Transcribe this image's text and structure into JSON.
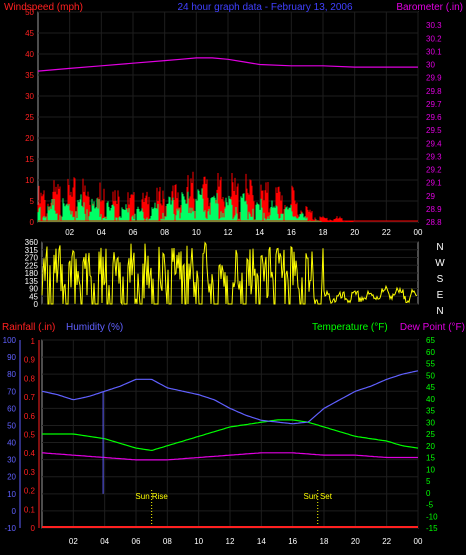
{
  "page_title": "24 hour graph data - February 13, 2006",
  "chart_data": [
    {
      "id": "wind-baro",
      "type": "line",
      "title": "24 hour graph data - February 13, 2006",
      "xlim": [
        0,
        24
      ],
      "x_tick_labels": [
        "02",
        "04",
        "06",
        "08",
        "10",
        "12",
        "14",
        "16",
        "18",
        "20",
        "22",
        "00"
      ],
      "left_axis": {
        "label": "Windspeed (mph)",
        "color": "#ff2020",
        "range": [
          0,
          50
        ],
        "tick_labels": [
          "0",
          "5",
          "10",
          "15",
          "20",
          "25",
          "30",
          "35",
          "40",
          "45",
          "50"
        ]
      },
      "right_axis": {
        "label": "Barometer (.in)",
        "color": "#e000e0",
        "range": [
          28.8,
          30.4
        ],
        "tick_labels": [
          "28.8",
          "28.9",
          "29",
          "29.1",
          "29.2",
          "29.3",
          "29.4",
          "29.5",
          "29.6",
          "29.7",
          "29.8",
          "29.9",
          "30",
          "30.1",
          "30.2",
          "30.3"
        ]
      },
      "series": [
        {
          "name": "Barometer (.in)",
          "color": "#e000e0",
          "axis": "right",
          "x": [
            0,
            2,
            4,
            6,
            8,
            9,
            10,
            11,
            12,
            13,
            14,
            16,
            18,
            20,
            22,
            24
          ],
          "y": [
            29.95,
            29.97,
            29.99,
            30.01,
            30.03,
            30.04,
            30.05,
            30.05,
            30.04,
            30.02,
            30.0,
            29.99,
            29.99,
            29.98,
            29.98,
            29.98
          ]
        },
        {
          "name": "Wind gust",
          "color": "#ff0000",
          "axis": "left",
          "x": [
            0,
            1,
            2,
            3,
            4,
            5,
            6,
            7,
            8,
            9,
            10,
            11,
            12,
            13,
            14,
            15,
            16,
            17,
            18,
            19,
            20,
            21,
            22,
            24
          ],
          "y": [
            6,
            7,
            7,
            8,
            7,
            6,
            5,
            5,
            6,
            7,
            9,
            8,
            8,
            8,
            7,
            7,
            6,
            3,
            1,
            1,
            0,
            0,
            0,
            0
          ]
        },
        {
          "name": "Wind average",
          "color": "#00ff66",
          "axis": "left",
          "x": [
            0,
            1,
            2,
            3,
            4,
            5,
            6,
            7,
            8,
            9,
            10,
            11,
            12,
            13,
            14,
            15,
            16,
            17,
            18,
            19,
            20,
            21,
            22,
            24
          ],
          "y": [
            3,
            4,
            4,
            5,
            4,
            3,
            3,
            3,
            4,
            5,
            6,
            5,
            5,
            5,
            4,
            4,
            3,
            1,
            0,
            0,
            0,
            0,
            0,
            0
          ]
        }
      ]
    },
    {
      "id": "direction",
      "type": "line",
      "xlim": [
        0,
        24
      ],
      "left_axis": {
        "range": [
          0,
          360
        ],
        "tick_labels": [
          "0",
          "45",
          "90",
          "135",
          "180",
          "225",
          "270",
          "315",
          "360"
        ]
      },
      "right_labels": [
        "N",
        "W",
        "S",
        "E",
        "N"
      ],
      "series": [
        {
          "name": "Wind direction",
          "color": "#ffff00",
          "x": [
            0,
            1,
            2,
            3,
            4,
            5,
            6,
            7,
            8,
            9,
            10,
            11,
            12,
            13,
            14,
            15,
            16,
            17,
            18,
            19,
            20,
            21,
            22,
            23,
            24
          ],
          "y": [
            270,
            300,
            250,
            280,
            260,
            290,
            240,
            270,
            280,
            300,
            260,
            280,
            270,
            290,
            280,
            300,
            270,
            280,
            60,
            50,
            60,
            60,
            90,
            70,
            60
          ]
        }
      ]
    },
    {
      "id": "temp-hum-rain",
      "type": "line",
      "xlim": [
        0,
        24
      ],
      "left_axis": {
        "label": "Humidity (%)",
        "color": "#6060ff",
        "range": [
          -10,
          100
        ],
        "tick_labels": [
          "-10",
          "0",
          "10",
          "20",
          "30",
          "40",
          "50",
          "60",
          "70",
          "80",
          "90",
          "100"
        ]
      },
      "rain_axis": {
        "label": "Rainfall (.in)",
        "color": "#ff2020",
        "range": [
          0,
          1
        ],
        "tick_labels": [
          "0",
          "0.1",
          "0.2",
          "0.3",
          "0.4",
          "0.5",
          "0.6",
          "0.7",
          "0.8",
          "0.9",
          "1"
        ]
      },
      "right_axis": {
        "label": "Temperature (°F)",
        "color": "#00ff00",
        "range": [
          -15,
          65
        ],
        "tick_labels": [
          "-15",
          "-10",
          "-5",
          "0",
          "5",
          "10",
          "15",
          "20",
          "25",
          "30",
          "35",
          "40",
          "45",
          "50",
          "55",
          "60",
          "65"
        ]
      },
      "dew_label": "Dew Point (°F)",
      "dew_color": "#e000e0",
      "annotations": [
        {
          "text": "Sun Rise",
          "x": 7.0
        },
        {
          "text": "Sun Set",
          "x": 17.6
        }
      ],
      "series": [
        {
          "name": "Humidity (%)",
          "color": "#6060ff",
          "axis": "left",
          "x": [
            0,
            1,
            2,
            3,
            4,
            5,
            6,
            7,
            8,
            9,
            10,
            11,
            12,
            13,
            14,
            15,
            16,
            17,
            18,
            19,
            20,
            21,
            22,
            23,
            24
          ],
          "y": [
            70,
            68,
            65,
            67,
            70,
            73,
            77,
            77,
            72,
            70,
            68,
            65,
            60,
            56,
            53,
            52,
            51,
            52,
            60,
            65,
            70,
            73,
            77,
            80,
            82
          ]
        },
        {
          "name": "Temperature (°F)",
          "color": "#00ff00",
          "axis": "right",
          "x": [
            0,
            1,
            2,
            3,
            4,
            5,
            6,
            7,
            8,
            9,
            10,
            11,
            12,
            13,
            14,
            15,
            16,
            17,
            18,
            19,
            20,
            21,
            22,
            23,
            24
          ],
          "y": [
            25,
            25,
            25,
            24,
            23,
            21,
            19,
            18,
            20,
            22,
            24,
            26,
            28,
            29,
            30,
            31,
            31,
            30,
            28,
            26,
            24,
            23,
            22,
            20,
            19
          ]
        },
        {
          "name": "Dew Point (°F)",
          "color": "#e000e0",
          "axis": "right",
          "x": [
            0,
            2,
            4,
            6,
            8,
            10,
            12,
            14,
            16,
            18,
            20,
            22,
            24
          ],
          "y": [
            17,
            16,
            15,
            14,
            14,
            15,
            16,
            17,
            17,
            16,
            16,
            15,
            15
          ]
        },
        {
          "name": "Rainfall (.in)",
          "color": "#ff2020",
          "axis": "rain",
          "x": [
            0,
            24
          ],
          "y": [
            0,
            0
          ]
        }
      ]
    }
  ]
}
